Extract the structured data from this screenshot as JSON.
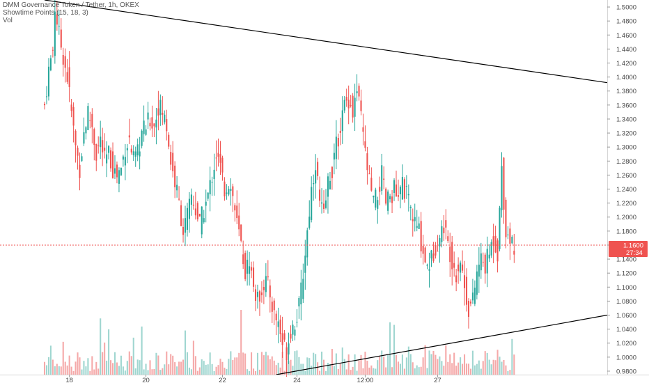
{
  "legend": {
    "title": "DMM Governance Token / Tether, 1h, OKEX",
    "indicator": "Showtime Points (15, 18, 3)",
    "volume": "Vol"
  },
  "price_badge": {
    "price": "1.1600",
    "countdown": "27:34"
  },
  "colors": {
    "up": "#26a69a",
    "down": "#ef5350",
    "up_volume": "#9fd6d0",
    "down_volume": "#f5a9a9",
    "trendline": "#000000",
    "price_line": "#ef5350"
  },
  "chart_data": {
    "type": "candlestick",
    "title": "DMM Governance Token / Tether, 1h, OKEX",
    "y_axis": {
      "ticks": [
        "1.5000",
        "1.4800",
        "1.4600",
        "1.4400",
        "1.4200",
        "1.4000",
        "1.3800",
        "1.3600",
        "1.3400",
        "1.3200",
        "1.3000",
        "1.2800",
        "1.2600",
        "1.2400",
        "1.2200",
        "1.2000",
        "1.1800",
        "1.1600",
        "1.1400",
        "1.1200",
        "1.1000",
        "1.0800",
        "1.0600",
        "1.0400",
        "1.0200",
        "1.0000",
        "0.9800"
      ],
      "range": [
        0.975,
        1.51
      ]
    },
    "x_axis": {
      "ticks": [
        "18",
        "20",
        "22",
        "24",
        "12:00",
        "27"
      ]
    },
    "current_price": 1.16,
    "trendlines": [
      {
        "name": "upper",
        "points": [
          [
            0,
            1.51
          ],
          [
            272,
            1.392
          ]
        ]
      },
      {
        "name": "lower",
        "points": [
          [
            112,
            0.975
          ],
          [
            272,
            1.06
          ]
        ]
      }
    ],
    "ohlc_anchors": [
      [
        0,
        1.36
      ],
      [
        2,
        1.41
      ],
      [
        4,
        1.44
      ],
      [
        5,
        1.5
      ],
      [
        7,
        1.46
      ],
      [
        9,
        1.43
      ],
      [
        11,
        1.4
      ],
      [
        13,
        1.35
      ],
      [
        15,
        1.3
      ],
      [
        17,
        1.27
      ],
      [
        19,
        1.32
      ],
      [
        21,
        1.35
      ],
      [
        23,
        1.33
      ],
      [
        25,
        1.29
      ],
      [
        27,
        1.31
      ],
      [
        29,
        1.28
      ],
      [
        31,
        1.29
      ],
      [
        33,
        1.27
      ],
      [
        35,
        1.26
      ],
      [
        37,
        1.27
      ],
      [
        39,
        1.3
      ],
      [
        41,
        1.31
      ],
      [
        43,
        1.28
      ],
      [
        45,
        1.29
      ],
      [
        47,
        1.32
      ],
      [
        49,
        1.33
      ],
      [
        51,
        1.34
      ],
      [
        53,
        1.33
      ],
      [
        55,
        1.36
      ],
      [
        57,
        1.35
      ],
      [
        59,
        1.33
      ],
      [
        61,
        1.28
      ],
      [
        63,
        1.25
      ],
      [
        65,
        1.22
      ],
      [
        67,
        1.18
      ],
      [
        69,
        1.2
      ],
      [
        71,
        1.23
      ],
      [
        73,
        1.21
      ],
      [
        75,
        1.19
      ],
      [
        77,
        1.21
      ],
      [
        79,
        1.23
      ],
      [
        81,
        1.26
      ],
      [
        83,
        1.29
      ],
      [
        85,
        1.27
      ],
      [
        87,
        1.24
      ],
      [
        89,
        1.25
      ],
      [
        91,
        1.23
      ],
      [
        93,
        1.19
      ],
      [
        95,
        1.16
      ],
      [
        97,
        1.12
      ],
      [
        99,
        1.14
      ],
      [
        101,
        1.1
      ],
      [
        103,
        1.08
      ],
      [
        105,
        1.1
      ],
      [
        107,
        1.11
      ],
      [
        109,
        1.09
      ],
      [
        111,
        1.06
      ],
      [
        113,
        1.05
      ],
      [
        115,
        1.02
      ],
      [
        117,
        1.01
      ],
      [
        119,
        1.04
      ],
      [
        121,
        1.05
      ],
      [
        123,
        1.07
      ],
      [
        125,
        1.12
      ],
      [
        127,
        1.18
      ],
      [
        129,
        1.24
      ],
      [
        131,
        1.28
      ],
      [
        133,
        1.22
      ],
      [
        135,
        1.2
      ],
      [
        137,
        1.25
      ],
      [
        139,
        1.27
      ],
      [
        141,
        1.3
      ],
      [
        143,
        1.33
      ],
      [
        145,
        1.36
      ],
      [
        147,
        1.37
      ],
      [
        149,
        1.35
      ],
      [
        151,
        1.38
      ],
      [
        153,
        1.34
      ],
      [
        155,
        1.29
      ],
      [
        157,
        1.25
      ],
      [
        159,
        1.22
      ],
      [
        161,
        1.23
      ],
      [
        163,
        1.26
      ],
      [
        165,
        1.22
      ],
      [
        167,
        1.23
      ],
      [
        169,
        1.24
      ],
      [
        171,
        1.22
      ],
      [
        173,
        1.25
      ],
      [
        175,
        1.23
      ],
      [
        177,
        1.21
      ],
      [
        179,
        1.19
      ],
      [
        181,
        1.18
      ],
      [
        183,
        1.15
      ],
      [
        185,
        1.13
      ],
      [
        187,
        1.14
      ],
      [
        189,
        1.16
      ],
      [
        191,
        1.17
      ],
      [
        193,
        1.19
      ],
      [
        195,
        1.16
      ],
      [
        197,
        1.14
      ],
      [
        199,
        1.12
      ],
      [
        201,
        1.14
      ],
      [
        203,
        1.1
      ],
      [
        205,
        1.07
      ],
      [
        207,
        1.08
      ],
      [
        209,
        1.12
      ],
      [
        211,
        1.14
      ],
      [
        213,
        1.13
      ],
      [
        215,
        1.15
      ],
      [
        217,
        1.17
      ],
      [
        219,
        1.15
      ],
      [
        221,
        1.27
      ],
      [
        223,
        1.18
      ],
      [
        225,
        1.17
      ],
      [
        227,
        1.16
      ]
    ],
    "volume_note": "per-candle volume bars shown at bottom, colored by candle direction"
  }
}
